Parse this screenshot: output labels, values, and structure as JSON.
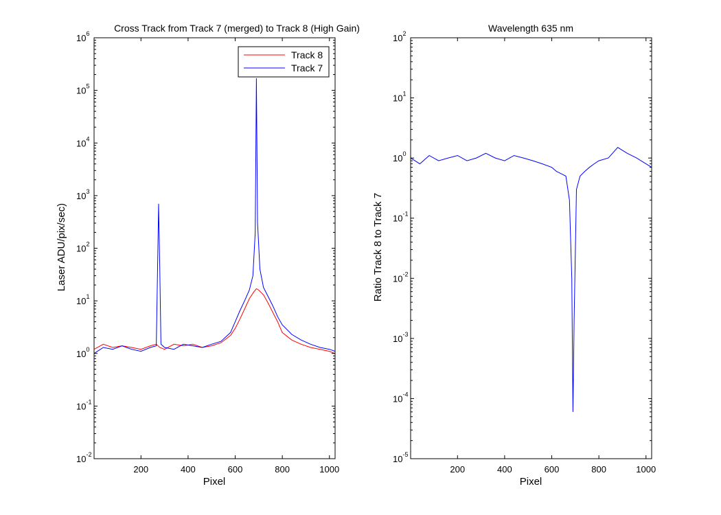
{
  "chart_data": [
    {
      "type": "line",
      "title": "Cross Track from Track 7 (merged) to Track 8 (High Gain)",
      "xlabel": "Pixel",
      "ylabel": "Laser ADU/pix/sec)",
      "yscale": "log",
      "xlim": [
        1,
        1024
      ],
      "ylim": [
        0.01,
        1000000
      ],
      "xticks": [
        200,
        400,
        600,
        800,
        1000
      ],
      "yticks": [
        {
          "base": "10",
          "exp": "-2",
          "value": 0.01
        },
        {
          "base": "10",
          "exp": "-1",
          "value": 0.1
        },
        {
          "base": "10",
          "exp": "0",
          "value": 1
        },
        {
          "base": "10",
          "exp": "1",
          "value": 10
        },
        {
          "base": "10",
          "exp": "2",
          "value": 100
        },
        {
          "base": "10",
          "exp": "3",
          "value": 1000
        },
        {
          "base": "10",
          "exp": "4",
          "value": 10000
        },
        {
          "base": "10",
          "exp": "5",
          "value": 100000
        },
        {
          "base": "10",
          "exp": "6",
          "value": 1000000
        }
      ],
      "legend_position": "top-right",
      "grid": false,
      "series": [
        {
          "name": "Track 8",
          "color": "#ff0000",
          "x": [
            1,
            40,
            80,
            120,
            160,
            200,
            240,
            265,
            280,
            300,
            340,
            380,
            420,
            460,
            500,
            540,
            580,
            600,
            620,
            640,
            660,
            680,
            690,
            700,
            720,
            740,
            760,
            780,
            800,
            840,
            880,
            920,
            960,
            1000,
            1024
          ],
          "values": [
            1.2,
            1.5,
            1.3,
            1.4,
            1.3,
            1.2,
            1.4,
            1.5,
            1.3,
            1.2,
            1.5,
            1.4,
            1.5,
            1.3,
            1.4,
            1.6,
            2.2,
            3.0,
            4.5,
            7.0,
            11,
            15,
            17,
            16,
            13,
            9,
            6,
            4,
            2.5,
            1.8,
            1.5,
            1.3,
            1.2,
            1.1,
            1.0
          ]
        },
        {
          "name": "Track 7",
          "color": "#0000ff",
          "x": [
            1,
            40,
            80,
            120,
            160,
            200,
            240,
            265,
            270,
            275,
            280,
            285,
            300,
            340,
            380,
            420,
            460,
            500,
            540,
            580,
            600,
            620,
            640,
            660,
            675,
            685,
            690,
            695,
            705,
            720,
            740,
            760,
            780,
            800,
            840,
            880,
            920,
            960,
            1000,
            1024
          ],
          "values": [
            1.0,
            1.3,
            1.2,
            1.4,
            1.2,
            1.1,
            1.3,
            1.4,
            30,
            700,
            40,
            1.5,
            1.3,
            1.2,
            1.5,
            1.4,
            1.3,
            1.5,
            1.7,
            2.5,
            4.0,
            6.5,
            10,
            16,
            30,
            200,
            170000,
            300,
            40,
            18,
            12,
            8,
            5,
            3.5,
            2.3,
            1.8,
            1.5,
            1.3,
            1.2,
            1.1
          ]
        }
      ]
    },
    {
      "type": "line",
      "title": "Wavelength 635 nm",
      "xlabel": "Pixel",
      "ylabel": "Ratio Track 8 to Track 7",
      "yscale": "log",
      "xlim": [
        1,
        1024
      ],
      "ylim": [
        1e-05,
        100
      ],
      "xticks": [
        200,
        400,
        600,
        800,
        1000
      ],
      "yticks": [
        {
          "base": "10",
          "exp": "-5",
          "value": 1e-05
        },
        {
          "base": "10",
          "exp": "-4",
          "value": 0.0001
        },
        {
          "base": "10",
          "exp": "-3",
          "value": 0.001
        },
        {
          "base": "10",
          "exp": "-2",
          "value": 0.01
        },
        {
          "base": "10",
          "exp": "-1",
          "value": 0.1
        },
        {
          "base": "10",
          "exp": "0",
          "value": 1
        },
        {
          "base": "10",
          "exp": "1",
          "value": 10
        },
        {
          "base": "10",
          "exp": "2",
          "value": 100
        }
      ],
      "grid": false,
      "series": [
        {
          "color": "#0000ff",
          "x": [
            1,
            40,
            80,
            120,
            160,
            200,
            240,
            280,
            320,
            360,
            400,
            440,
            480,
            520,
            560,
            600,
            620,
            640,
            660,
            675,
            685,
            690,
            695,
            705,
            720,
            740,
            760,
            780,
            800,
            840,
            880,
            920,
            960,
            1000,
            1024
          ],
          "values": [
            1.0,
            0.8,
            1.1,
            0.9,
            1.0,
            1.1,
            0.9,
            1.0,
            1.2,
            1.0,
            0.9,
            1.1,
            1.0,
            0.9,
            0.8,
            0.7,
            0.6,
            0.55,
            0.5,
            0.2,
            0.01,
            6e-05,
            0.002,
            0.3,
            0.5,
            0.6,
            0.7,
            0.8,
            0.9,
            1.0,
            1.5,
            1.2,
            1.0,
            0.8,
            0.7
          ]
        }
      ]
    }
  ]
}
